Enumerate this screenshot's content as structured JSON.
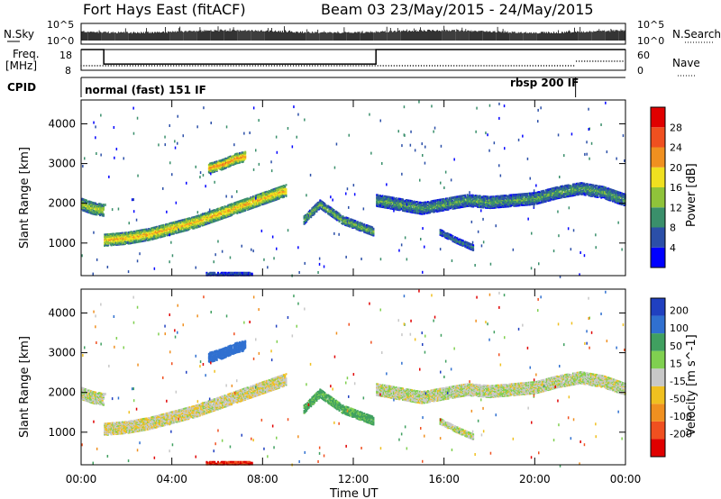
{
  "header": {
    "title_left": "Fort Hays East (fitACF)",
    "title_right": "Beam 03 23/May/2015 - 24/May/2015"
  },
  "top_panels": {
    "nsky_label": "N.Sky",
    "nsearch_label": "N.Search",
    "nsky_ticks": [
      "10^5",
      "10^0"
    ],
    "nsearch_ticks": [
      "10^5",
      "10^0"
    ],
    "freq_label_1": "Freq.",
    "freq_label_2": "[MHz]",
    "freq_ticks": [
      "18",
      "8"
    ],
    "nave_label": "Nave",
    "nave_ticks": [
      "60",
      "0"
    ],
    "cpid_label": "CPID",
    "cpid_segments": [
      {
        "label": "normal (fast) 151 IF",
        "start_hour": 0,
        "end_hour": 21.8
      },
      {
        "label": "rbsp 200 IF",
        "start_hour": 21.8,
        "end_hour": 24
      }
    ],
    "freq_mhz_steps": [
      {
        "start_hour": 0,
        "end_hour": 1.0,
        "value": 18
      },
      {
        "start_hour": 1.0,
        "end_hour": 13.0,
        "value": 11
      },
      {
        "start_hour": 13.0,
        "end_hour": 24,
        "value": 18
      }
    ]
  },
  "power_panel": {
    "ylabel": "Slant Range [km]",
    "yticks": [
      1000,
      2000,
      3000,
      4000
    ],
    "colorbar_title": "Power [dB]",
    "colorbar_ticks": [
      "4",
      "8",
      "12",
      "16",
      "20",
      "24",
      "28"
    ],
    "colors": [
      "#0000ff",
      "#2b4fa8",
      "#3a8f6b",
      "#8fc33a",
      "#f0e020",
      "#f09020",
      "#f05020",
      "#e00000"
    ]
  },
  "velocity_panel": {
    "ylabel": "Slant Range [km]",
    "yticks": [
      1000,
      2000,
      3000,
      4000
    ],
    "colorbar_title": "Velocity [m s^-1]",
    "colorbar_ticks": [
      "200",
      "100",
      "50",
      "15",
      "-15",
      "-50",
      "-100",
      "-200"
    ],
    "colors": [
      "#2040c0",
      "#3070d0",
      "#40a060",
      "#80d050",
      "#c8c8c8",
      "#f0c020",
      "#f09020",
      "#f05020",
      "#e00000"
    ]
  },
  "xaxis": {
    "label": "Time UT",
    "ticks": [
      "00:00",
      "04:00",
      "08:00",
      "12:00",
      "16:00",
      "20:00",
      "00:00"
    ]
  },
  "chart_data": {
    "type": "heatmap",
    "x_unit": "hours UT",
    "xlim": [
      0,
      24
    ],
    "ylim_km": [
      180,
      4600
    ],
    "echo_bands": [
      {
        "name": "early band",
        "x": [
          0,
          0.5,
          1.0
        ],
        "y_center_km": [
          2000,
          1900,
          1850
        ],
        "thickness_km": 300,
        "power_db": 14,
        "velocity": -5
      },
      {
        "name": "main arc",
        "x": [
          1.0,
          2,
          3,
          4,
          5,
          6,
          7,
          8,
          9
        ],
        "y_center_km": [
          1100,
          1150,
          1250,
          1400,
          1550,
          1750,
          1950,
          2150,
          2350
        ],
        "thickness_km": 300,
        "power_db": 18,
        "velocity": -10
      },
      {
        "name": "isolated patch",
        "x": [
          5.6,
          6.2,
          6.8,
          7.2
        ],
        "y_center_km": [
          2900,
          3000,
          3150,
          3200
        ],
        "thickness_km": 250,
        "power_db": 20,
        "velocity": 100
      },
      {
        "name": "midday feature",
        "x": [
          9.8,
          10.5,
          11.5,
          12.9
        ],
        "y_center_km": [
          1600,
          2000,
          1600,
          1300
        ],
        "thickness_km": 200,
        "power_db": 12,
        "velocity": 40
      },
      {
        "name": "late band",
        "x": [
          13,
          14,
          15,
          16,
          17,
          18,
          19,
          20,
          21,
          22,
          23,
          24
        ],
        "y_center_km": [
          2100,
          2000,
          1900,
          2000,
          2100,
          2050,
          2100,
          2150,
          2300,
          2400,
          2300,
          2100
        ],
        "thickness_km": 300,
        "power_db": 10,
        "velocity": -5
      },
      {
        "name": "low patch",
        "x": [
          15.8,
          16.5,
          17.3
        ],
        "y_center_km": [
          1300,
          1100,
          900
        ],
        "thickness_km": 150,
        "power_db": 8,
        "velocity": -5
      },
      {
        "name": "ground scatter",
        "x": [
          5.5,
          6.5,
          7.5
        ],
        "y_center_km": [
          250,
          250,
          250
        ],
        "thickness_km": 80,
        "power_db": 6,
        "velocity": -150
      }
    ]
  }
}
